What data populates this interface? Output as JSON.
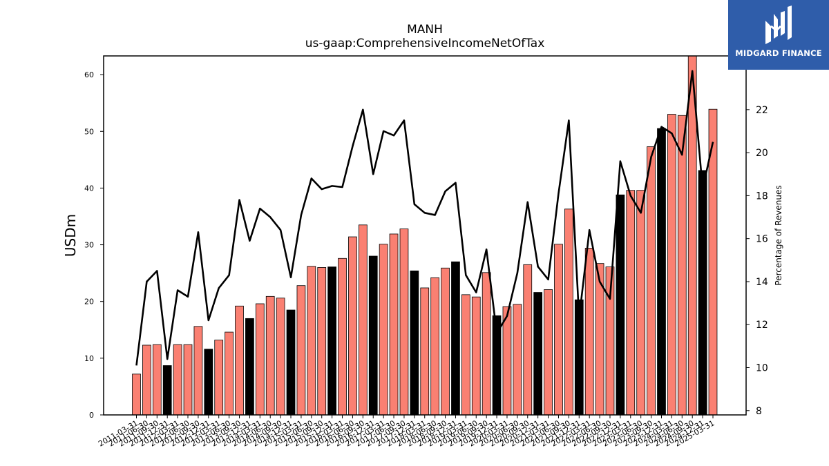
{
  "chart_data": {
    "type": "bar",
    "title": "MANH",
    "subtitle": "us-gaap:ComprehensiveIncomeNetOfTax",
    "ylabel": "USDm",
    "ylabel_right": "Percentage of Revenues",
    "ylim": [
      0,
      63.3
    ],
    "ylim_right": [
      7.8,
      24.5
    ],
    "yticks": [
      0,
      10,
      20,
      30,
      40,
      50,
      60
    ],
    "yticks_right": [
      8,
      10,
      12,
      14,
      16,
      18,
      20,
      22
    ],
    "categories": [
      "2011-03-31",
      "2011-06-30",
      "2011-09-30",
      "2011-12-31",
      "2012-03-31",
      "2012-06-30",
      "2012-09-30",
      "2012-12-31",
      "2013-03-31",
      "2013-06-30",
      "2013-09-30",
      "2013-12-31",
      "2014-03-31",
      "2014-06-30",
      "2014-09-30",
      "2014-12-31",
      "2015-03-31",
      "2015-06-30",
      "2015-09-30",
      "2015-12-31",
      "2016-03-31",
      "2016-06-30",
      "2016-09-30",
      "2016-12-31",
      "2017-03-31",
      "2017-06-30",
      "2017-09-30",
      "2017-12-31",
      "2018-03-31",
      "2018-06-30",
      "2018-09-30",
      "2018-12-31",
      "2019-03-31",
      "2019-06-30",
      "2019-09-30",
      "2019-12-31",
      "2020-03-31",
      "2020-06-30",
      "2020-09-30",
      "2020-12-31",
      "2021-03-31",
      "2021-06-30",
      "2021-09-30",
      "2021-12-31",
      "2022-03-31",
      "2022-06-30",
      "2022-09-30",
      "2022-12-31",
      "2023-03-31",
      "2023-06-30",
      "2023-09-30",
      "2023-12-31",
      "2024-03-31",
      "2024-06-30",
      "2024-09-30",
      "2024-12-31",
      "2025-03-31"
    ],
    "series": [
      {
        "kind": "bar",
        "values": [
          7.2,
          12.3,
          12.4,
          8.7,
          12.4,
          12.4,
          15.6,
          11.6,
          13.2,
          14.6,
          19.2,
          17.0,
          19.6,
          20.9,
          20.6,
          18.5,
          22.8,
          26.2,
          26.0,
          26.1,
          27.6,
          31.4,
          33.5,
          28.0,
          30.1,
          31.9,
          32.8,
          25.4,
          22.4,
          24.2,
          25.9,
          27.0,
          21.2,
          20.8,
          25.1,
          17.5,
          19.1,
          19.5,
          26.5,
          21.6,
          22.1,
          30.1,
          36.3,
          20.3,
          29.4,
          26.7,
          26.1,
          38.8,
          39.6,
          39.6,
          47.3,
          50.5,
          53.0,
          52.8,
          63.5,
          43.1,
          53.9
        ],
        "highlight_color": "#000000",
        "default_color": "#fa8072",
        "highlighted_indices": [
          3,
          7,
          11,
          15,
          19,
          23,
          27,
          31,
          35,
          39,
          43,
          47,
          51,
          55
        ]
      },
      {
        "kind": "line",
        "color": "#000000",
        "values": [
          10.1,
          14.0,
          14.5,
          10.4,
          13.6,
          13.3,
          16.3,
          12.2,
          13.7,
          14.3,
          17.8,
          15.9,
          17.4,
          17.0,
          16.4,
          14.2,
          17.1,
          18.8,
          18.3,
          18.45,
          18.4,
          20.3,
          22.0,
          19.0,
          21.0,
          20.8,
          21.5,
          17.6,
          17.2,
          17.1,
          18.2,
          18.6,
          14.3,
          13.5,
          15.5,
          11.6,
          12.4,
          14.4,
          17.7,
          14.7,
          14.1,
          18.1,
          21.5,
          12.3,
          16.4,
          14.0,
          13.2,
          19.6,
          18.0,
          17.2,
          19.8,
          21.2,
          20.9,
          19.9,
          23.8,
          18.3,
          20.5
        ]
      }
    ]
  },
  "logo": {
    "text": "MIDGARD FINANCE",
    "bg_color": "#2f5daa"
  }
}
